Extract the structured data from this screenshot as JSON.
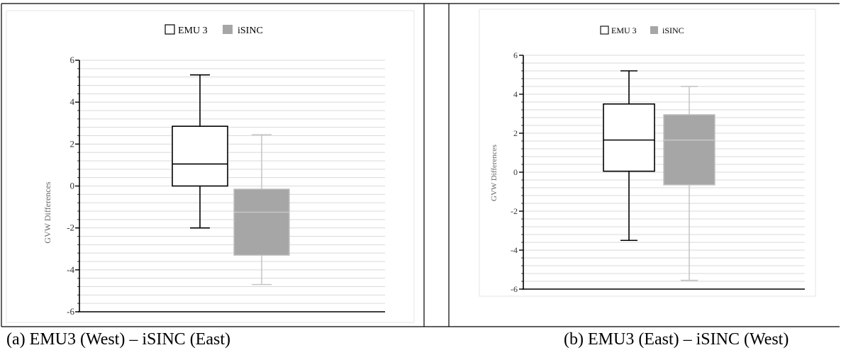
{
  "charts": [
    {
      "caption": "(a)  EMU3 (West) – iSINC (East)",
      "ylabel": "GVW Differences",
      "legend": [
        {
          "label": "EMU 3",
          "fill": "#ffffff"
        },
        {
          "label": "iSINC",
          "fill": "#a6a6a6"
        }
      ],
      "yticks": [
        "6",
        "4",
        "2",
        "0",
        "-2",
        "-4",
        "-6"
      ]
    },
    {
      "caption": "(b)   EMU3 (East) – iSINC (West)",
      "ylabel": "GVW Differences",
      "legend": [
        {
          "label": "EMU 3",
          "fill": "#ffffff"
        },
        {
          "label": "iSINC",
          "fill": "#a6a6a6"
        }
      ],
      "yticks": [
        "6",
        "4",
        "2",
        "0",
        "-2",
        "-4",
        "-6"
      ]
    }
  ],
  "chart_data": [
    {
      "type": "box",
      "title": "",
      "ylabel": "GVW Differences",
      "ylim": [
        -6,
        6
      ],
      "ytick_step": 2,
      "minor_gridlines_per_major": 5,
      "grid": true,
      "legend_position": "top-center",
      "series": [
        {
          "name": "EMU 3",
          "min": -2.0,
          "q1": 0.0,
          "median": 1.05,
          "q3": 2.85,
          "max": 5.3,
          "fill": "#ffffff",
          "stroke": "#000000"
        },
        {
          "name": "iSINC",
          "min": -4.7,
          "q1": -3.3,
          "median": -1.25,
          "q3": -0.15,
          "max": 2.45,
          "fill": "#a6a6a6",
          "stroke": "#c0c0c0"
        }
      ]
    },
    {
      "type": "box",
      "title": "",
      "ylabel": "GVW Differences",
      "ylim": [
        -6,
        6
      ],
      "ytick_step": 2,
      "minor_gridlines_per_major": 5,
      "grid": true,
      "legend_position": "top-center",
      "series": [
        {
          "name": "EMU 3",
          "min": -3.5,
          "q1": 0.05,
          "median": 1.65,
          "q3": 3.5,
          "max": 5.2,
          "fill": "#ffffff",
          "stroke": "#000000"
        },
        {
          "name": "iSINC",
          "min": -5.55,
          "q1": -0.65,
          "median": 1.65,
          "q3": 2.95,
          "max": 4.4,
          "fill": "#a6a6a6",
          "stroke": "#c0c0c0"
        }
      ]
    }
  ]
}
